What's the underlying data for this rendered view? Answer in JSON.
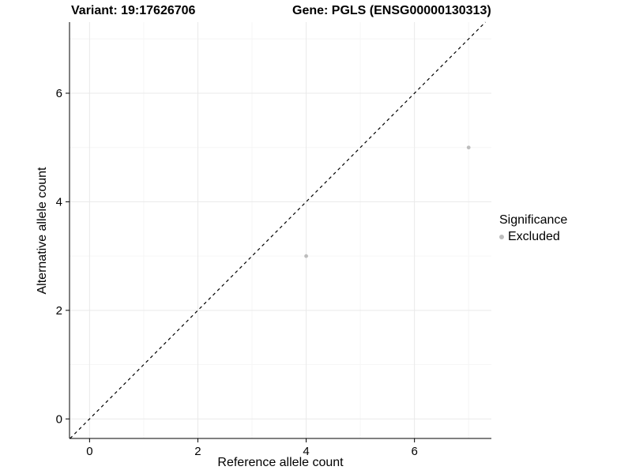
{
  "chart_data": {
    "type": "scatter",
    "title_left": "Variant: 19:17626706",
    "title_right": "Gene: PGLS (ENSG00000130313)",
    "xlabel": "Reference allele count",
    "ylabel": "Alternative allele count",
    "xlim": [
      -0.37,
      7.42
    ],
    "ylim": [
      -0.36,
      7.31
    ],
    "x_ticks": [
      0,
      2,
      4,
      6
    ],
    "y_ticks": [
      0,
      2,
      4,
      6
    ],
    "x_minor_ticks": [
      1,
      3,
      5,
      7
    ],
    "y_minor_ticks": [
      1,
      3,
      5,
      7
    ],
    "grid": true,
    "points": [
      {
        "x": 4,
        "y": 3,
        "series": "Excluded"
      },
      {
        "x": 7,
        "y": 5,
        "series": "Excluded"
      }
    ],
    "identity_line": {
      "style": "dashed",
      "color": "#000000",
      "slope": 1,
      "intercept": 0
    },
    "point_color": "#bdbdbd",
    "colors": {
      "axis": "#000000",
      "major_grid": "#e9e9e9",
      "minor_grid": "#f6f6f6",
      "background": "#ffffff"
    },
    "legend": {
      "title": "Significance",
      "position": "right",
      "items": [
        {
          "label": "Excluded",
          "color": "#bdbdbd"
        }
      ]
    }
  }
}
